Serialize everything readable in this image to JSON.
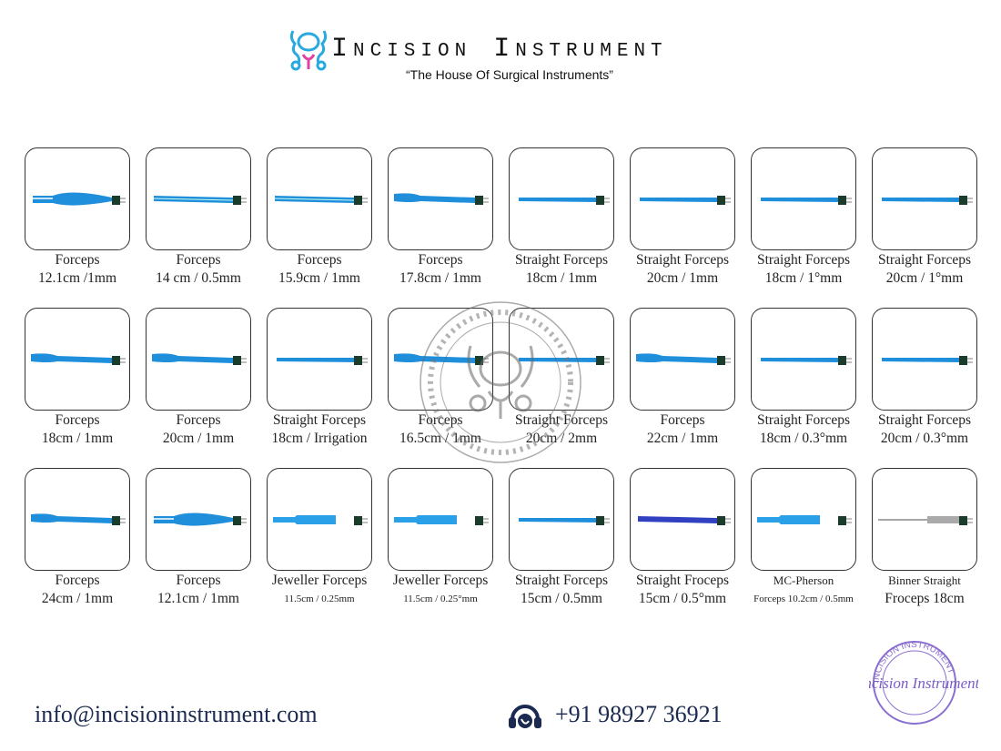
{
  "header": {
    "brand": "Incision Instrument",
    "tagline": "“The House Of Surgical Instruments”"
  },
  "products": [
    {
      "name": "Forceps",
      "spec": "12.1cm /1mm",
      "shape": "wide"
    },
    {
      "name": "Forceps",
      "spec": "14 cm / 0.5mm",
      "shape": "straight"
    },
    {
      "name": "Forceps",
      "spec": "15.9cm / 1mm",
      "shape": "straight"
    },
    {
      "name": "Forceps",
      "spec": "17.8cm / 1mm",
      "shape": "bayonet"
    },
    {
      "name": "Straight Forceps",
      "spec": "18cm / 1mm",
      "shape": "thin"
    },
    {
      "name": "Straight Forceps",
      "spec": "20cm / 1mm",
      "shape": "thin"
    },
    {
      "name": "Straight Forceps",
      "spec": "18cm / 1°mm",
      "shape": "thin"
    },
    {
      "name": "Straight Forceps",
      "spec": "20cm / 1°mm",
      "shape": "thin"
    },
    {
      "name": "Forceps",
      "spec": "18cm / 1mm",
      "shape": "bayonet"
    },
    {
      "name": "Forceps",
      "spec": "20cm / 1mm",
      "shape": "bayonet"
    },
    {
      "name": "Straight Forceps",
      "spec": "18cm / Irrigation",
      "shape": "thin"
    },
    {
      "name": "Forceps",
      "spec": "16.5cm / 1mm",
      "shape": "bayonet"
    },
    {
      "name": "Straight Forceps",
      "spec": "20cm / 2mm",
      "shape": "thin"
    },
    {
      "name": "Forceps",
      "spec": "22cm / 1mm",
      "shape": "bayonet"
    },
    {
      "name": "Straight Forceps",
      "spec": "18cm / 0.3°mm",
      "shape": "thin"
    },
    {
      "name": "Straight Forceps",
      "spec": "20cm / 0.3°mm",
      "shape": "thin"
    },
    {
      "name": "Forceps",
      "spec": "24cm / 1mm",
      "shape": "bayonet"
    },
    {
      "name": "Forceps",
      "spec": "12.1cm / 1mm",
      "shape": "wide"
    },
    {
      "name": "Jeweller Forceps",
      "spec": "11.5cm / 0.25mm",
      "shape": "jeweller"
    },
    {
      "name": "Jeweller Forceps",
      "spec": "11.5cm / 0.25°mm",
      "shape": "jeweller"
    },
    {
      "name": "Straight Forceps",
      "spec": "15cm / 0.5mm",
      "shape": "thin"
    },
    {
      "name": "Straight Froceps",
      "spec": "15cm / 0.5°mm",
      "shape": "dark"
    },
    {
      "name": "MC-Pherson",
      "spec": "Forceps 10.2cm / 0.5mm",
      "shape": "jeweller"
    },
    {
      "name": "Binner Straight",
      "spec": "Froceps 18cm",
      "shape": "needle"
    }
  ],
  "footer": {
    "email": "info@incisioninstrument.com",
    "phone": "+91 98927 36921"
  },
  "watermark": {
    "text": "INCISION INSTRUMENT • THE HOUSE OF SURGICAL INSTRUMENTS •"
  },
  "stamp": {
    "text": "INCISION INSTRUMENT",
    "script": "Incision Instrument"
  },
  "colors": {
    "instrument_blue": "#1f8fdc",
    "logo_blue": "#2aa8e0",
    "logo_pink": "#e040a0",
    "stamp_purple": "#8a6fd0"
  }
}
